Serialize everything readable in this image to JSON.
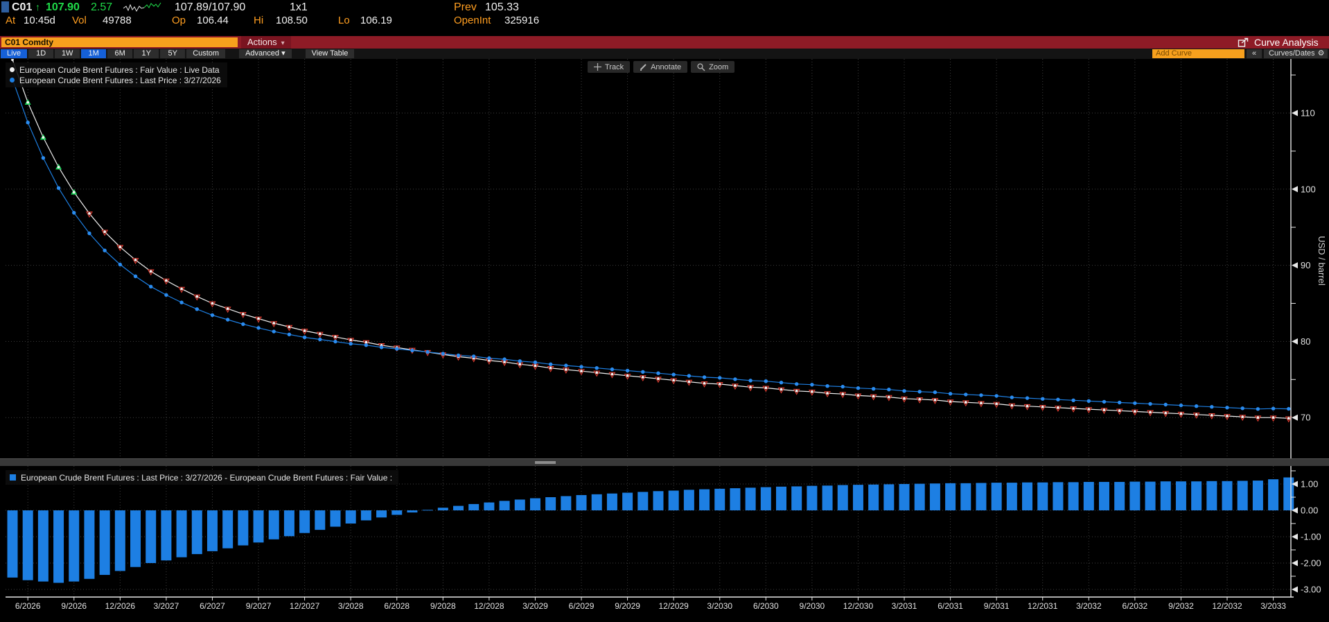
{
  "quote": {
    "ticker": "C01",
    "arrow": "↑",
    "last": "107.90",
    "change": "2.57",
    "bid_ask": "107.89/107.90",
    "lot": "1x1",
    "prev_label": "Prev",
    "prev": "105.33",
    "at_label": "At",
    "time": "10:45d",
    "vol_label": "Vol",
    "volume": "49788",
    "op_label": "Op",
    "open": "106.44",
    "hi_label": "Hi",
    "high": "108.50",
    "lo_label": "Lo",
    "low": "106.19",
    "openint_label": "OpenInt",
    "open_interest": "325916"
  },
  "titlebar": {
    "security_input": "C01 Comdty",
    "actions_label": "Actions",
    "app_title": "Curve Analysis"
  },
  "toolbar": {
    "tabs": [
      {
        "label": "Live",
        "active": true
      },
      {
        "label": "1D"
      },
      {
        "label": "1W"
      },
      {
        "label": "1M",
        "active": true
      },
      {
        "label": "6M"
      },
      {
        "label": "1Y"
      },
      {
        "label": "5Y"
      },
      {
        "label": "Custom"
      },
      {
        "label": "Advanced",
        "dropdown": true,
        "group2": true
      },
      {
        "label": "View Table",
        "group2": true
      }
    ],
    "add_curve_placeholder": "Add Curve",
    "collapse_label": "«",
    "curves_dates_label": "Curves/Dates"
  },
  "chart_tools": {
    "track": "Track",
    "annotate": "Annotate",
    "zoom": "Zoom"
  },
  "legend_main": [
    {
      "marker_color": "#f2f2f2",
      "label": "European Crude Brent Futures : Fair Value : Live Data"
    },
    {
      "marker_color": "#1d7fe3",
      "label": "European Crude Brent Futures : Last Price : 3/27/2026"
    }
  ],
  "legend_lower": {
    "marker_color": "#1d7fe3",
    "label": "European Crude Brent Futures : Last Price : 3/27/2026 - European Crude Brent Futures : Fair Value :"
  },
  "colors": {
    "accent_orange": "#f7a01d",
    "label_orange": "#ff9e20",
    "price_green": "#1fdb49",
    "titlebar_red": "#8e1b26",
    "active_tab_blue": "#1560d8",
    "series_blue": "#1d7fe3",
    "series_white": "#f2f2f2",
    "marker_green": "#19d457",
    "marker_red": "#dd3c30"
  },
  "chart_data": {
    "type": "line+bar",
    "title": "",
    "x_labels": [
      "6/2026",
      "9/2026",
      "12/2026",
      "3/2027",
      "6/2027",
      "9/2027",
      "12/2027",
      "3/2028",
      "6/2028",
      "9/2028",
      "12/2028",
      "3/2029",
      "6/2029",
      "9/2029",
      "12/2029",
      "3/2030",
      "6/2030",
      "9/2030",
      "12/2030",
      "3/2031",
      "6/2031",
      "9/2031",
      "12/2031",
      "3/2032",
      "6/2032",
      "9/2032",
      "12/2032",
      "3/2033"
    ],
    "x_label_first_point": 1,
    "x_label_point_step": 3,
    "main_panel": {
      "ylabel": "USD / barrel",
      "yticks": [
        110,
        100,
        90,
        80,
        70
      ],
      "minor_yticks": [
        115,
        105,
        95,
        85,
        75
      ],
      "ylim": [
        64.5,
        117.3
      ],
      "grid": true
    },
    "lower_panel": {
      "yticks": [
        1.0,
        0.0,
        -1.0,
        -2.0,
        -3.0
      ],
      "minor_yticks": [
        1.5,
        0.5,
        -0.5,
        -1.5,
        -2.5
      ],
      "ylim": [
        -3.3,
        1.6
      ],
      "grid": true
    },
    "series": {
      "fair_value": {
        "name": "European Crude Brent Futures : Fair Value : Live Data",
        "type": "line",
        "color": "#f2f2f2",
        "values": [
          117.0,
          111.4,
          106.8,
          102.9,
          99.6,
          96.8,
          94.4,
          92.4,
          90.7,
          89.2,
          88.0,
          86.9,
          85.9,
          85.0,
          84.3,
          83.6,
          83.0,
          82.4,
          81.9,
          81.4,
          81.0,
          80.6,
          80.2,
          79.9,
          79.5,
          79.2,
          78.9,
          78.6,
          78.3,
          78.0,
          77.8,
          77.5,
          77.3,
          77.0,
          76.8,
          76.5,
          76.3,
          76.1,
          75.9,
          75.7,
          75.5,
          75.3,
          75.1,
          74.9,
          74.7,
          74.5,
          74.4,
          74.2,
          74.0,
          73.9,
          73.7,
          73.5,
          73.4,
          73.2,
          73.1,
          72.9,
          72.8,
          72.7,
          72.5,
          72.4,
          72.3,
          72.1,
          72.0,
          71.9,
          71.8,
          71.6,
          71.5,
          71.4,
          71.3,
          71.2,
          71.1,
          71.0,
          70.9,
          70.8,
          70.7,
          70.6,
          70.5,
          70.4,
          70.3,
          70.2,
          70.1,
          70.0,
          70.0,
          69.9
        ]
      },
      "spread": {
        "name": "European Crude Brent Futures : Last Price : 3/27/2026 - European Crude Brent Futures : Fair Value :",
        "type": "bar",
        "color": "#1d7fe3",
        "values": [
          -2.55,
          -2.65,
          -2.7,
          -2.75,
          -2.7,
          -2.6,
          -2.45,
          -2.3,
          -2.15,
          -2.0,
          -1.9,
          -1.78,
          -1.66,
          -1.55,
          -1.44,
          -1.33,
          -1.22,
          -1.1,
          -0.98,
          -0.86,
          -0.74,
          -0.62,
          -0.5,
          -0.38,
          -0.27,
          -0.17,
          -0.08,
          0.02,
          0.1,
          0.17,
          0.24,
          0.3,
          0.36,
          0.41,
          0.46,
          0.5,
          0.54,
          0.58,
          0.61,
          0.64,
          0.67,
          0.7,
          0.73,
          0.75,
          0.78,
          0.8,
          0.82,
          0.84,
          0.86,
          0.88,
          0.9,
          0.91,
          0.93,
          0.94,
          0.96,
          0.97,
          0.98,
          0.99,
          1.0,
          1.01,
          1.02,
          1.03,
          1.03,
          1.04,
          1.05,
          1.05,
          1.06,
          1.06,
          1.07,
          1.07,
          1.08,
          1.08,
          1.08,
          1.09,
          1.09,
          1.1,
          1.1,
          1.1,
          1.11,
          1.11,
          1.12,
          1.13,
          1.18,
          1.25
        ]
      },
      "last_price": {
        "name": "European Crude Brent Futures : Last Price : 3/27/2026",
        "type": "line",
        "color": "#1d7fe3",
        "derivation": "fair_value + spread"
      }
    },
    "markers": {
      "green_up_point_indices": [
        1,
        2,
        3,
        4
      ],
      "red_down_points_from_index": 5,
      "green_color": "#19d457",
      "red_color": "#dd3c30"
    }
  }
}
